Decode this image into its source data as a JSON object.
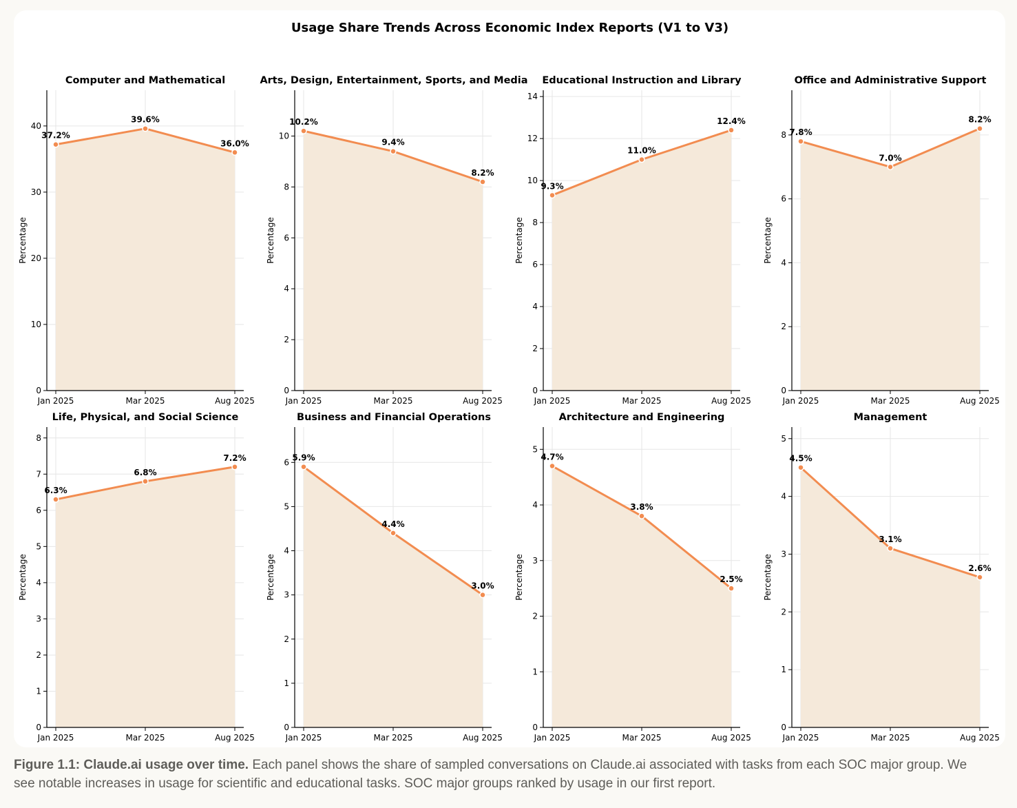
{
  "figure": {
    "title": "Usage Share Trends Across Economic Index Reports (V1 to V3)",
    "caption_lead": "Figure 1.1: Claude.ai usage over time.",
    "caption_body": " Each panel shows the share of sampled conversations on Claude.ai associated with tasks from each SOC major group. We see notable increases in usage for scientific and educational tasks. SOC major groups ranked by usage in our first report."
  },
  "colors": {
    "line": "#f28c50",
    "fill": "#f5e9da",
    "grid": "#e6e6e6",
    "axis": "#000000"
  },
  "chart_data": [
    {
      "type": "area",
      "title": "Computer and Mathematical",
      "categories": [
        "Jan 2025",
        "Mar 2025",
        "Aug 2025"
      ],
      "values": [
        37.2,
        39.6,
        36.0
      ],
      "labels": [
        "37.2%",
        "39.6%",
        "36.0%"
      ],
      "ylabel": "Percentage",
      "ylim": [
        0,
        45.4
      ],
      "yticks": [
        0,
        10,
        20,
        30,
        40
      ],
      "grid": true
    },
    {
      "type": "area",
      "title": "Arts, Design, Entertainment, Sports, and Media",
      "categories": [
        "Jan 2025",
        "Mar 2025",
        "Aug 2025"
      ],
      "values": [
        10.2,
        9.4,
        8.2
      ],
      "labels": [
        "10.2%",
        "9.4%",
        "8.2%"
      ],
      "ylabel": "Percentage",
      "ylim": [
        0,
        11.8
      ],
      "yticks": [
        0,
        2,
        4,
        6,
        8,
        10
      ],
      "grid": true
    },
    {
      "type": "area",
      "title": "Educational Instruction and Library",
      "categories": [
        "Jan 2025",
        "Mar 2025",
        "Aug 2025"
      ],
      "values": [
        9.3,
        11.0,
        12.4
      ],
      "labels": [
        "9.3%",
        "11.0%",
        "12.4%"
      ],
      "ylabel": "Percentage",
      "ylim": [
        0,
        14.3
      ],
      "yticks": [
        0,
        2,
        4,
        6,
        8,
        10,
        12,
        14
      ],
      "grid": true
    },
    {
      "type": "area",
      "title": "Office and Administrative Support",
      "categories": [
        "Jan 2025",
        "Mar 2025",
        "Aug 2025"
      ],
      "values": [
        7.8,
        7.0,
        8.2
      ],
      "labels": [
        "7.8%",
        "7.0%",
        "8.2%"
      ],
      "ylabel": "Percentage",
      "ylim": [
        0,
        9.4
      ],
      "yticks": [
        0,
        2,
        4,
        6,
        8
      ],
      "grid": true
    },
    {
      "type": "area",
      "title": "Life, Physical, and Social Science",
      "categories": [
        "Jan 2025",
        "Mar 2025",
        "Aug 2025"
      ],
      "values": [
        6.3,
        6.8,
        7.2
      ],
      "labels": [
        "6.3%",
        "6.8%",
        "7.2%"
      ],
      "ylabel": "Percentage",
      "ylim": [
        0,
        8.3
      ],
      "yticks": [
        0,
        1,
        2,
        3,
        4,
        5,
        6,
        7,
        8
      ],
      "grid": true
    },
    {
      "type": "area",
      "title": "Business and Financial Operations",
      "categories": [
        "Jan 2025",
        "Mar 2025",
        "Aug 2025"
      ],
      "values": [
        5.9,
        4.4,
        3.0
      ],
      "labels": [
        "5.9%",
        "4.4%",
        "3.0%"
      ],
      "ylabel": "Percentage",
      "ylim": [
        0,
        6.8
      ],
      "yticks": [
        0,
        1,
        2,
        3,
        4,
        5,
        6
      ],
      "grid": true
    },
    {
      "type": "area",
      "title": "Architecture and Engineering",
      "categories": [
        "Jan 2025",
        "Mar 2025",
        "Aug 2025"
      ],
      "values": [
        4.7,
        3.8,
        2.5
      ],
      "labels": [
        "4.7%",
        "3.8%",
        "2.5%"
      ],
      "ylabel": "Percentage",
      "ylim": [
        0,
        5.4
      ],
      "yticks": [
        0,
        1,
        2,
        3,
        4,
        5
      ],
      "grid": true
    },
    {
      "type": "area",
      "title": "Management",
      "categories": [
        "Jan 2025",
        "Mar 2025",
        "Aug 2025"
      ],
      "values": [
        4.5,
        3.1,
        2.6
      ],
      "labels": [
        "4.5%",
        "3.1%",
        "2.6%"
      ],
      "ylabel": "Percentage",
      "ylim": [
        0,
        5.2
      ],
      "yticks": [
        0,
        1,
        2,
        3,
        4,
        5
      ],
      "grid": true
    }
  ]
}
